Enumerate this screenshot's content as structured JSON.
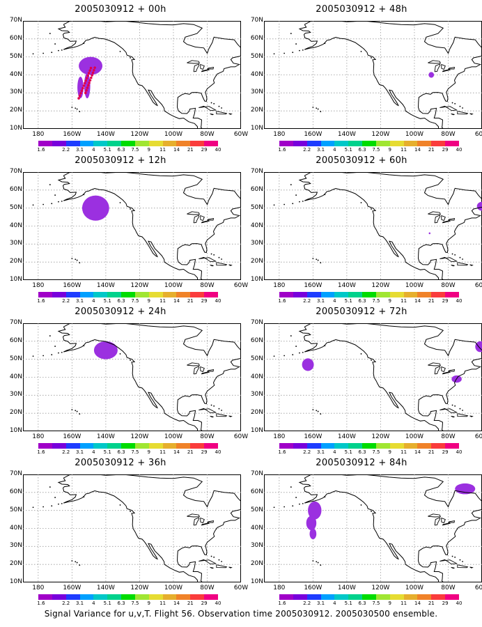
{
  "panels": [
    {
      "title": "2005030912 + 00h",
      "blobs": [
        {
          "lon": -149,
          "lat": 45,
          "rx": 7,
          "ry": 5
        },
        {
          "lon": -155,
          "lat": 33,
          "rx": 1.8,
          "ry": 6
        },
        {
          "lon": -151,
          "lat": 34,
          "rx": 1.8,
          "ry": 7
        }
      ]
    },
    {
      "title": "2005030912 + 48h",
      "blobs": [
        {
          "lon": -90,
          "lat": 40,
          "rx": 1.6,
          "ry": 1.6
        }
      ]
    },
    {
      "title": "2005030912 + 12h",
      "blobs": [
        {
          "lon": -146,
          "lat": 50,
          "rx": 8,
          "ry": 7
        }
      ]
    },
    {
      "title": "2005030912 + 60h",
      "blobs": [
        {
          "lon": -60,
          "lat": 51,
          "rx": 3,
          "ry": 2.5
        },
        {
          "lon": -91,
          "lat": 36,
          "rx": 0.5,
          "ry": 0.5
        }
      ]
    },
    {
      "title": "2005030912 + 24h",
      "blobs": [
        {
          "lon": -140,
          "lat": 55,
          "rx": 7,
          "ry": 5
        }
      ]
    },
    {
      "title": "2005030912 + 72h",
      "blobs": [
        {
          "lon": -163,
          "lat": 47,
          "rx": 3.5,
          "ry": 3.5
        },
        {
          "lon": -61,
          "lat": 57,
          "rx": 3,
          "ry": 3
        },
        {
          "lon": -75,
          "lat": 39,
          "rx": 3,
          "ry": 2
        }
      ]
    },
    {
      "title": "2005030912 + 36h",
      "blobs": []
    },
    {
      "title": "2005030912 + 84h",
      "blobs": [
        {
          "lon": -159,
          "lat": 50,
          "rx": 4,
          "ry": 5
        },
        {
          "lon": -161,
          "lat": 43,
          "rx": 3,
          "ry": 4
        },
        {
          "lon": -160,
          "lat": 37,
          "rx": 2,
          "ry": 3
        },
        {
          "lon": -70,
          "lat": 62,
          "rx": 6,
          "ry": 3
        }
      ]
    }
  ],
  "lat_labels": [
    "70N",
    "60N",
    "50N",
    "40N",
    "30N",
    "20N",
    "10N"
  ],
  "lon_labels": [
    "180",
    "160W",
    "140W",
    "120W",
    "100W",
    "80W",
    "60W"
  ],
  "colorbar_labels": [
    "1.6",
    "2.2",
    "3.1",
    "4",
    "5.1",
    "6.3",
    "7.5",
    "9",
    "11",
    "14",
    "21",
    "29",
    "40"
  ],
  "colorbar_colors": [
    "#a000c8",
    "#7800dc",
    "#1e3cff",
    "#00a0ff",
    "#00c8c8",
    "#00d28c",
    "#00dc00",
    "#a0e632",
    "#e6dc32",
    "#e6af2d",
    "#f08228",
    "#fa3c3c",
    "#f00082"
  ],
  "shade_color": "#9b30e0",
  "caption": "Signal Variance for u,v,T. Flight 56. Observation time 2005030912. 2005030500 ensemble."
}
